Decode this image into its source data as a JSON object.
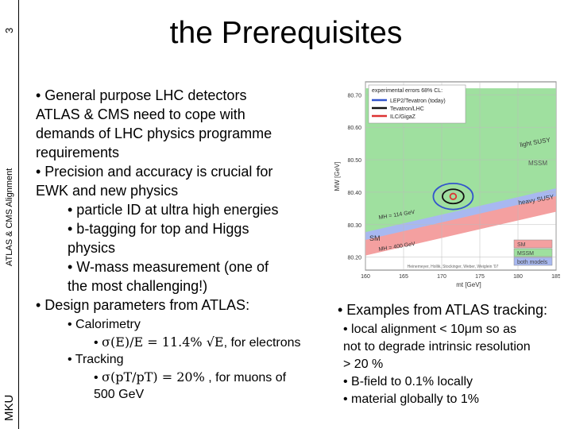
{
  "slide": {
    "number": "3",
    "side_label": "ATLAS & CMS Alignment",
    "author": "MKU",
    "title": "the Prerequisites"
  },
  "body": {
    "lines": [
      "• General purpose LHC detectors",
      "ATLAS & CMS need to cope with",
      "demands of LHC physics programme",
      "requirements",
      "• Precision and accuracy is crucial for",
      "EWK and new physics",
      "• particle ID at ultra high energies",
      "• b-tagging for top and Higgs",
      "physics",
      "• W-mass measurement (one of",
      "the most challenging!)",
      "• Design parameters from ATLAS:"
    ],
    "calorimetry": "• Calorimetry",
    "calo_res_prefix": "• ",
    "calo_res_formula": "σ(E)/E = 11.4% √E",
    "calo_res_suffix": ", for electrons",
    "tracking": "• Tracking",
    "track_res_prefix": "• ",
    "track_res_formula": "σ(pT/pT) = 20%",
    "track_res_suffix": " , for muons of",
    "track_res_energy": "500 GeV"
  },
  "examples": {
    "heading": "• Examples from ATLAS tracking:",
    "items": [
      "• local alignment < 10μm so as",
      "not to degrade intrinsic resolution",
      "> 20 %",
      "• B-field to 0.1% locally",
      "• material globally to 1%"
    ]
  },
  "chart_data": {
    "type": "area",
    "xlabel": "mt [GeV]",
    "ylabel": "MW [GeV]",
    "xlim": [
      160,
      185
    ],
    "ylim": [
      80.16,
      80.74
    ],
    "xticks": [
      "160",
      "165",
      "170",
      "175",
      "180",
      "185"
    ],
    "yticks": [
      "80.20",
      "80.30",
      "80.40",
      "80.50",
      "80.60",
      "80.70"
    ],
    "legend_title": "experimental errors 68% CL:",
    "legend": [
      {
        "name": "LEP2/Tevatron (today)",
        "color": "#3355cc"
      },
      {
        "name": "Tevatron/LHC",
        "color": "#111111"
      },
      {
        "name": "ILC/GigaZ",
        "color": "#dd3333"
      }
    ],
    "regions": [
      {
        "name": "SM",
        "color": "#f4a0a0"
      },
      {
        "name": "MSSM",
        "color": "#9fe09f"
      },
      {
        "name": "both models",
        "color": "#a8b8f0"
      }
    ],
    "region_labels": [
      "light SUSY",
      "MSSM",
      "heavy SUSY",
      "SM"
    ],
    "higgs_labels": [
      "MH = 114 GeV",
      "MH = 400 GeV"
    ],
    "sm_band": {
      "x": [
        160,
        185
      ],
      "lower_y": [
        80.205,
        80.34
      ],
      "upper_y": [
        80.265,
        80.4
      ]
    },
    "mssm_band": {
      "x": [
        160,
        185
      ],
      "lower_y": [
        80.265,
        80.4
      ],
      "upper_y": [
        80.72,
        80.72
      ]
    },
    "ellipses": [
      {
        "name": "LEP2/Tevatron (today)",
        "center": [
          171.5,
          80.387
        ],
        "radii": [
          2.6,
          0.04
        ],
        "color": "#3355cc"
      },
      {
        "name": "Tevatron/LHC",
        "center": [
          171.5,
          80.387
        ],
        "radii": [
          1.4,
          0.022
        ],
        "color": "#111111"
      },
      {
        "name": "ILC/GigaZ",
        "center": [
          171.5,
          80.387
        ],
        "radii": [
          0.4,
          0.009
        ],
        "color": "#dd3333"
      }
    ],
    "credit": "Heinemeyer, Hollik, Stockinger, Weber, Weiglein '07"
  }
}
